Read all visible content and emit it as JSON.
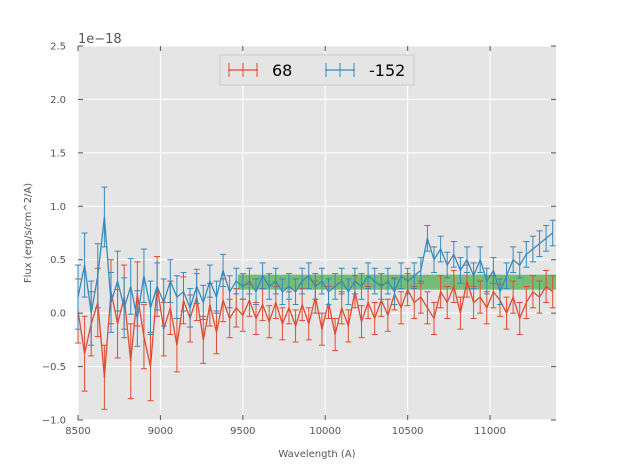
{
  "colors": {
    "plot_bg": "#e5e5e5",
    "grid": "#ffffff",
    "series_68": "#e24a33",
    "series_neg152": "#348abd",
    "band": "#2ca02c",
    "text": "#555555"
  },
  "chart_data": {
    "type": "line",
    "xlabel": "Wavelength (A)",
    "ylabel": "Flux (erg/s/cm^2/A)",
    "offset_text": "1e−18",
    "xlim": [
      8500,
      11400
    ],
    "ylim": [
      -1.0,
      2.5
    ],
    "xticks": [
      8500,
      9000,
      9500,
      10000,
      10500,
      11000
    ],
    "xtick_labels": [
      "8500",
      "9000",
      "9500",
      "10000",
      "10500",
      "11000"
    ],
    "yticks": [
      -1.0,
      -0.5,
      0.0,
      0.5,
      1.0,
      1.5,
      2.0,
      2.5
    ],
    "ytick_labels": [
      "−1.0",
      "−0.5",
      "0.0",
      "0.5",
      "1.0",
      "1.5",
      "2.0",
      "2.5"
    ],
    "grid": true,
    "legend": {
      "placement": "top-center",
      "entries": [
        "68",
        "-152"
      ]
    },
    "band": {
      "x": [
        9470,
        11400
      ],
      "y": [
        0.22,
        0.36
      ]
    },
    "series": [
      {
        "name": "68",
        "x": [
          8500,
          8540,
          8580,
          8620,
          8660,
          8700,
          8740,
          8780,
          8820,
          8860,
          8900,
          8940,
          8980,
          9020,
          9060,
          9100,
          9140,
          9180,
          9220,
          9260,
          9300,
          9340,
          9380,
          9420,
          9460,
          9500,
          9540,
          9580,
          9620,
          9660,
          9700,
          9740,
          9780,
          9820,
          9860,
          9900,
          9940,
          9980,
          10020,
          10060,
          10100,
          10140,
          10180,
          10220,
          10260,
          10300,
          10340,
          10380,
          10420,
          10460,
          10500,
          10540,
          10580,
          10620,
          10660,
          10700,
          10740,
          10780,
          10820,
          10860,
          10900,
          10940,
          10980,
          11020,
          11060,
          11100,
          11140,
          11180,
          11220,
          11260,
          11300,
          11340,
          11380
        ],
        "values": [
          0.02,
          -0.38,
          -0.1,
          0.1,
          -0.6,
          0.2,
          -0.1,
          0.15,
          -0.45,
          0.18,
          -0.22,
          -0.5,
          0.25,
          -0.15,
          0.05,
          -0.3,
          0.12,
          -0.05,
          0.15,
          -0.25,
          0.08,
          -0.18,
          0.12,
          -0.05,
          0.05,
          -0.02,
          0.12,
          -0.05,
          0.08,
          -0.08,
          0.1,
          -0.1,
          0.05,
          -0.12,
          0.08,
          -0.1,
          0.15,
          -0.15,
          0.1,
          -0.2,
          0.05,
          -0.12,
          0.2,
          -0.08,
          0.1,
          -0.05,
          0.12,
          -0.02,
          0.18,
          0.05,
          0.22,
          0.1,
          0.15,
          0.05,
          -0.05,
          0.2,
          0.1,
          0.25,
          0.0,
          0.3,
          0.1,
          0.15,
          0.05,
          0.2,
          0.12,
          0.0,
          0.15,
          -0.05,
          0.1,
          0.2,
          0.15,
          0.25,
          0.2
        ],
        "errors": [
          0.3,
          0.35,
          0.3,
          0.32,
          0.3,
          0.3,
          0.32,
          0.3,
          0.35,
          0.3,
          0.3,
          0.32,
          0.28,
          0.25,
          0.25,
          0.25,
          0.22,
          0.22,
          0.22,
          0.22,
          0.2,
          0.2,
          0.2,
          0.18,
          0.18,
          0.15,
          0.15,
          0.15,
          0.15,
          0.15,
          0.15,
          0.15,
          0.15,
          0.15,
          0.15,
          0.15,
          0.15,
          0.15,
          0.15,
          0.15,
          0.15,
          0.15,
          0.15,
          0.15,
          0.15,
          0.15,
          0.15,
          0.15,
          0.15,
          0.15,
          0.15,
          0.15,
          0.15,
          0.15,
          0.15,
          0.15,
          0.15,
          0.15,
          0.15,
          0.15,
          0.15,
          0.15,
          0.15,
          0.15,
          0.15,
          0.15,
          0.15,
          0.15,
          0.15,
          0.15,
          0.15,
          0.15,
          0.15
        ]
      },
      {
        "name": "-152",
        "x": [
          8500,
          8540,
          8580,
          8620,
          8660,
          8700,
          8740,
          8780,
          8820,
          8860,
          8900,
          8940,
          8980,
          9020,
          9060,
          9100,
          9140,
          9180,
          9220,
          9260,
          9300,
          9340,
          9380,
          9420,
          9460,
          9500,
          9540,
          9580,
          9620,
          9660,
          9700,
          9740,
          9780,
          9820,
          9860,
          9900,
          9940,
          9980,
          10020,
          10060,
          10100,
          10140,
          10180,
          10220,
          10260,
          10300,
          10340,
          10380,
          10420,
          10460,
          10500,
          10540,
          10580,
          10620,
          10660,
          10700,
          10740,
          10780,
          10820,
          10860,
          10900,
          10940,
          10980,
          11020,
          11060,
          11100,
          11140,
          11180,
          11220,
          11260,
          11300,
          11340,
          11380
        ],
        "values": [
          0.15,
          0.45,
          0.0,
          0.35,
          0.9,
          0.1,
          0.3,
          0.05,
          0.25,
          -0.05,
          0.35,
          0.05,
          0.25,
          0.1,
          0.3,
          0.15,
          0.2,
          0.05,
          0.25,
          0.1,
          0.3,
          0.15,
          0.4,
          0.2,
          0.3,
          0.25,
          0.3,
          0.2,
          0.35,
          0.25,
          0.3,
          0.2,
          0.25,
          0.2,
          0.3,
          0.35,
          0.25,
          0.3,
          0.2,
          0.25,
          0.3,
          0.2,
          0.3,
          0.25,
          0.35,
          0.3,
          0.25,
          0.3,
          0.2,
          0.35,
          0.3,
          0.35,
          0.4,
          0.7,
          0.5,
          0.6,
          0.45,
          0.55,
          0.4,
          0.5,
          0.35,
          0.5,
          0.3,
          0.4,
          0.2,
          0.35,
          0.5,
          0.45,
          0.55,
          0.6,
          0.65,
          0.7,
          0.75
        ],
        "errors": [
          0.3,
          0.3,
          0.3,
          0.3,
          0.28,
          0.28,
          0.28,
          0.28,
          0.26,
          0.26,
          0.25,
          0.25,
          0.22,
          0.22,
          0.2,
          0.2,
          0.18,
          0.18,
          0.16,
          0.16,
          0.15,
          0.15,
          0.15,
          0.15,
          0.12,
          0.12,
          0.12,
          0.12,
          0.12,
          0.12,
          0.12,
          0.12,
          0.12,
          0.12,
          0.12,
          0.12,
          0.12,
          0.12,
          0.12,
          0.12,
          0.12,
          0.12,
          0.12,
          0.12,
          0.12,
          0.12,
          0.12,
          0.12,
          0.12,
          0.12,
          0.12,
          0.12,
          0.12,
          0.12,
          0.12,
          0.12,
          0.12,
          0.12,
          0.12,
          0.12,
          0.12,
          0.12,
          0.12,
          0.12,
          0.12,
          0.12,
          0.12,
          0.12,
          0.12,
          0.12,
          0.12,
          0.12,
          0.12
        ]
      }
    ]
  }
}
